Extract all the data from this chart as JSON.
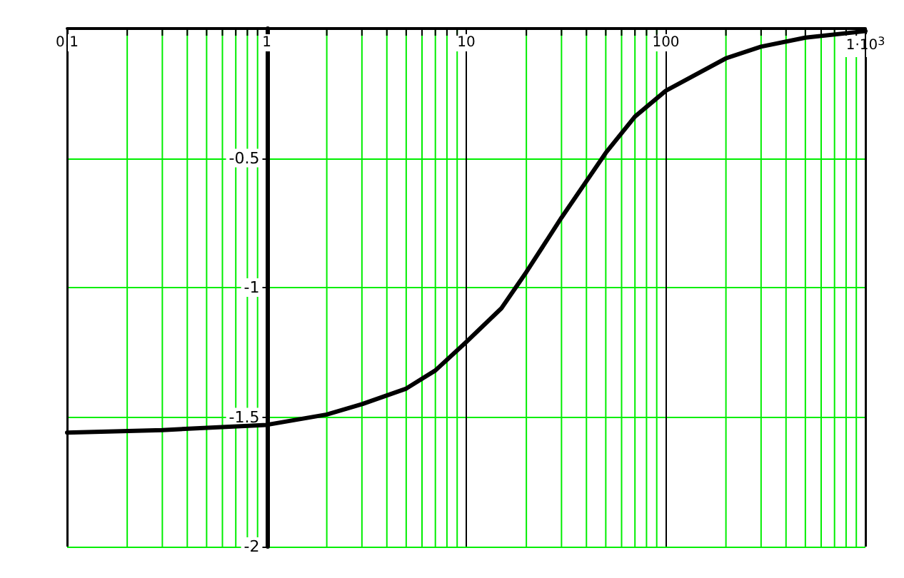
{
  "chart_data": {
    "type": "line",
    "x": [
      0.1,
      0.3,
      1,
      2,
      3,
      5,
      7,
      10,
      15,
      20,
      30,
      50,
      70,
      100,
      200,
      300,
      500,
      1000
    ],
    "series": [
      {
        "color": "#000000",
        "values": [
          -1.56,
          -1.55,
          -1.53,
          -1.49,
          -1.45,
          -1.39,
          -1.32,
          -1.21,
          -1.08,
          -0.94,
          -0.73,
          -0.48,
          -0.34,
          -0.24,
          -0.115,
          -0.07,
          -0.035,
          -0.01
        ]
      }
    ],
    "log": "x",
    "xlim": [
      0.1,
      1000
    ],
    "xticks": [
      0.1,
      1,
      10,
      100,
      {
        "value": 1000,
        "label": "1·10$^{3}$"
      }
    ],
    "ylim": [
      -2,
      0
    ],
    "yticks": [
      -2,
      -1.5,
      -1,
      -0.5
    ],
    "grid": true,
    "marker": "none",
    "line_style": "solid"
  }
}
